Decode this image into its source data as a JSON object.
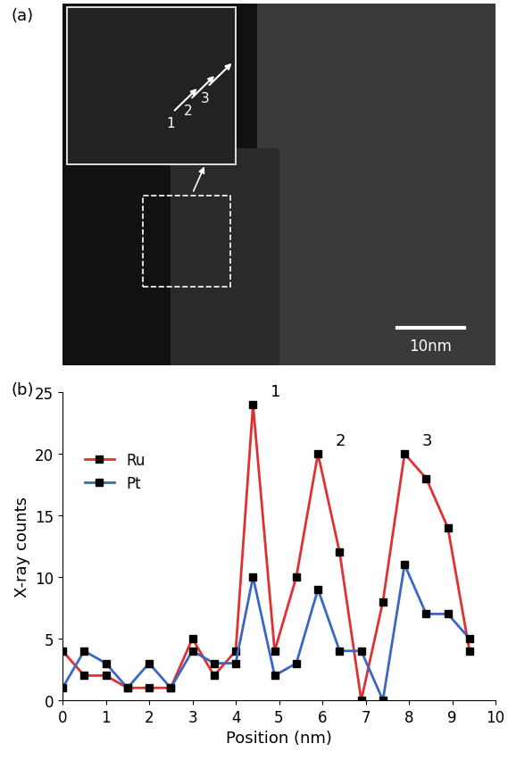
{
  "image_panel": {
    "label": "(a)",
    "scale_bar_label": "10nm",
    "inset_markers": [
      "1",
      "2",
      "3"
    ]
  },
  "chart_data": {
    "type": "line",
    "panel_label": "(b)",
    "x": [
      0,
      0.5,
      1,
      1.5,
      2,
      2.5,
      3,
      3.5,
      4,
      4.4,
      4.9,
      5.4,
      5.9,
      6.4,
      6.9,
      7.4,
      7.9,
      8.4,
      8.9,
      9.4
    ],
    "series": [
      {
        "name": "Ru",
        "color": "#e03030",
        "values": [
          4,
          2,
          2,
          1,
          1,
          1,
          5,
          2,
          4,
          24,
          4,
          10,
          20,
          12,
          0,
          8,
          20,
          18,
          14,
          4
        ]
      },
      {
        "name": "Pt",
        "color": "#3a66c4",
        "values": [
          1,
          4,
          3,
          1,
          3,
          1,
          4,
          3,
          3,
          10,
          2,
          3,
          9,
          4,
          4,
          0,
          11,
          7,
          7,
          5
        ]
      }
    ],
    "xlabel": "Position (nm)",
    "ylabel": "X-ray counts",
    "xlim": [
      0,
      10
    ],
    "ylim": [
      0,
      25
    ],
    "xticks": [
      0,
      1,
      2,
      3,
      4,
      5,
      6,
      7,
      8,
      9,
      10
    ],
    "yticks": [
      0,
      5,
      10,
      15,
      20,
      25
    ],
    "legend": "upper left",
    "marker": "square",
    "line_style": "solid",
    "annotations": [
      "1",
      "2",
      "3"
    ]
  }
}
